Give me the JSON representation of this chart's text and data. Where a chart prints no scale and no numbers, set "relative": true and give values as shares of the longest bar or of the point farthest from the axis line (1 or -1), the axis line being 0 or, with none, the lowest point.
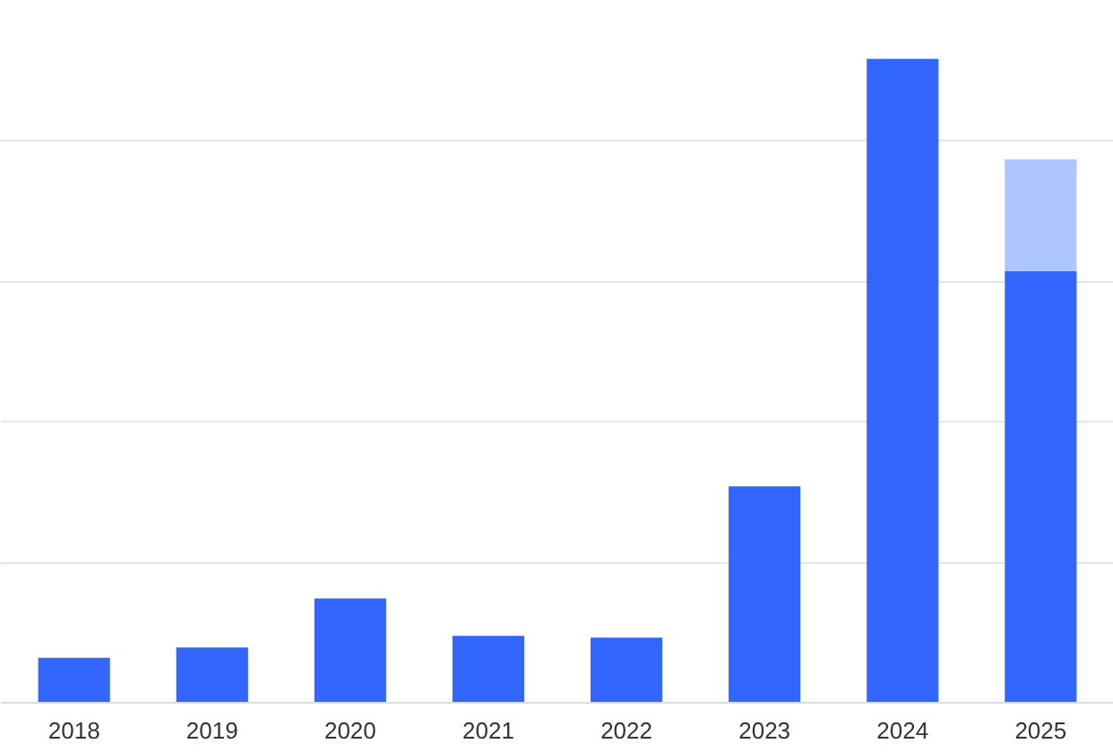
{
  "chart_data": {
    "type": "bar",
    "relative": true,
    "stacked": true,
    "grid": "y",
    "categories": [
      "2018",
      "2019",
      "2020",
      "2021",
      "2022",
      "2023",
      "2024",
      "2025"
    ],
    "series": [
      {
        "color": "#3366ff",
        "values": [
          0.07,
          0.086,
          0.162,
          0.104,
          0.101,
          0.336,
          1,
          0.67
        ]
      },
      {
        "color": "#adc6fb",
        "values": [
          null,
          null,
          null,
          null,
          null,
          null,
          null,
          0.174
        ]
      }
    ]
  }
}
